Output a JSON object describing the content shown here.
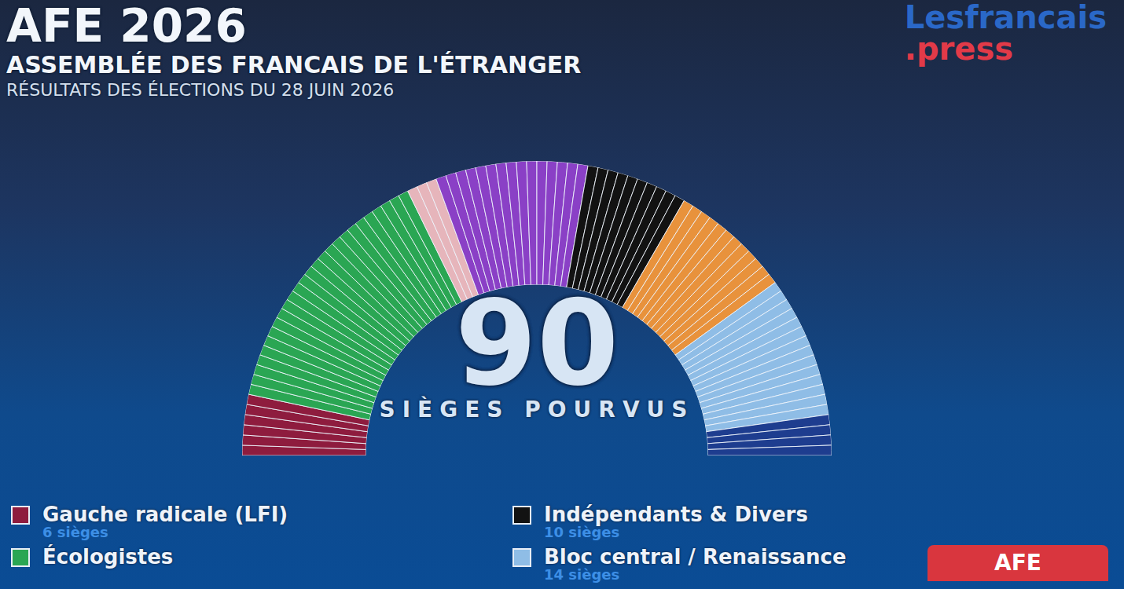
{
  "header": {
    "title": "AFE 2026",
    "subtitle": "ASSEMBLÉE DES FRANCAIS DE L'ÉTRANGER",
    "date_line": "RÉSULTATS DES ÉLECTIONS DU 28 JUIN 2026",
    "logo": {
      "line1": "Lesfrancais",
      "line2": ".press"
    }
  },
  "chart_data": {
    "type": "hemicycle",
    "total": 90,
    "total_label": "SIÈGES POURVUS",
    "tick_labels": false,
    "series": [
      {
        "name": "Gauche radicale (LFI)",
        "color": "#8e1c3e",
        "values": [
          6
        ],
        "value_labels": [
          "6 sièges"
        ]
      },
      {
        "name": "Écologistes",
        "color": "#2aa653",
        "values": [
          26
        ]
      },
      {
        "name": null,
        "color": "#e6b5bb",
        "values": [
          3
        ]
      },
      {
        "name": null,
        "color": "#8a40c6",
        "values": [
          15
        ]
      },
      {
        "name": "Indépendants & Divers",
        "color": "#121212",
        "values": [
          10
        ],
        "value_labels": [
          "10 sièges"
        ]
      },
      {
        "name": null,
        "color": "#e8923c",
        "values": [
          12
        ]
      },
      {
        "name": "Bloc central / Renaissance",
        "color": "#8fbde6",
        "values": [
          14
        ],
        "value_labels": [
          "14 sièges"
        ]
      },
      {
        "name": null,
        "color": "#1e3d8f",
        "values": [
          4
        ]
      }
    ]
  },
  "badge": "AFE"
}
